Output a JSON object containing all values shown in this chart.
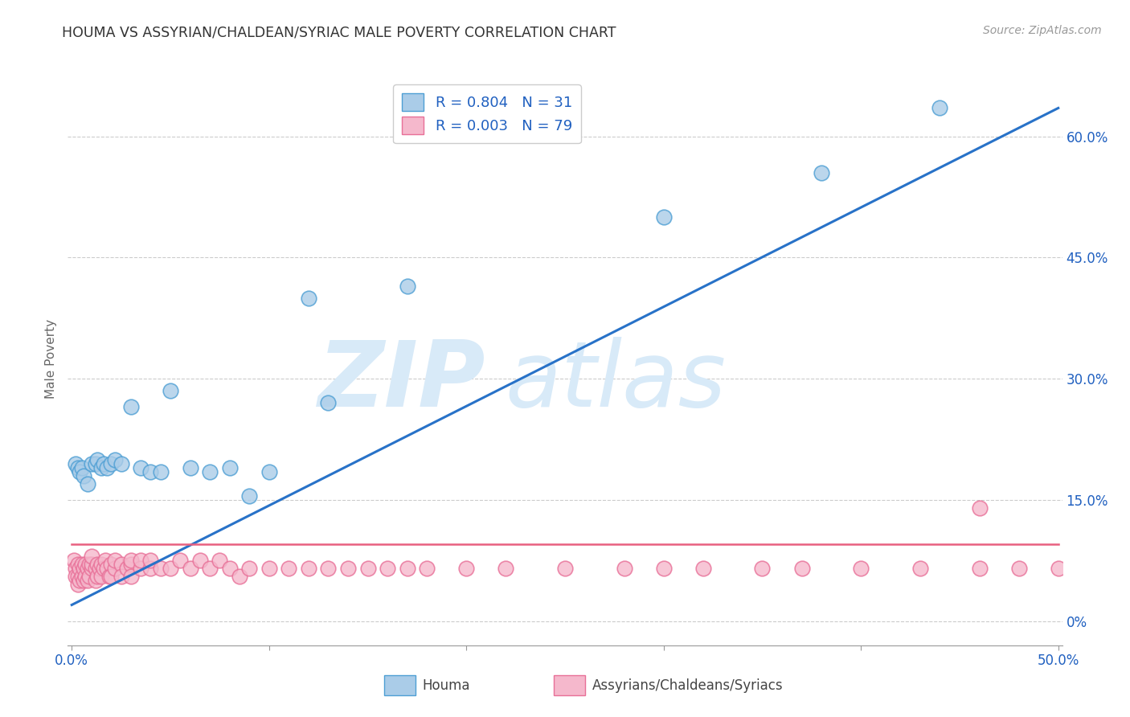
{
  "title": "HOUMA VS ASSYRIAN/CHALDEAN/SYRIAC MALE POVERTY CORRELATION CHART",
  "source": "Source: ZipAtlas.com",
  "ylabel": "Male Poverty",
  "right_yticks": [
    "0%",
    "15.0%",
    "30.0%",
    "45.0%",
    "60.0%"
  ],
  "right_ytick_vals": [
    0.0,
    0.15,
    0.3,
    0.45,
    0.6
  ],
  "xlim": [
    -0.002,
    0.502
  ],
  "ylim": [
    -0.03,
    0.68
  ],
  "plot_area_ylim": [
    0.0,
    0.65
  ],
  "houma_R": 0.804,
  "houma_N": 31,
  "assyrian_R": 0.003,
  "assyrian_N": 79,
  "houma_color": "#aacce8",
  "houma_edge_color": "#4e9fd4",
  "assyrian_color": "#f5b8cc",
  "assyrian_edge_color": "#e87098",
  "trend_houma_color": "#2872c8",
  "trend_assyrian_color": "#e86080",
  "legend_text_color": "#2060c0",
  "watermark_color": "#d8eaf8",
  "background_color": "#ffffff",
  "houma_x": [
    0.002,
    0.003,
    0.004,
    0.005,
    0.006,
    0.008,
    0.01,
    0.012,
    0.013,
    0.015,
    0.016,
    0.018,
    0.02,
    0.022,
    0.025,
    0.03,
    0.035,
    0.04,
    0.045,
    0.05,
    0.06,
    0.07,
    0.08,
    0.09,
    0.1,
    0.12,
    0.13,
    0.17,
    0.3,
    0.38,
    0.44
  ],
  "houma_y": [
    0.195,
    0.19,
    0.185,
    0.19,
    0.18,
    0.17,
    0.195,
    0.195,
    0.2,
    0.19,
    0.195,
    0.19,
    0.195,
    0.2,
    0.195,
    0.265,
    0.19,
    0.185,
    0.185,
    0.285,
    0.19,
    0.185,
    0.19,
    0.155,
    0.185,
    0.4,
    0.27,
    0.415,
    0.5,
    0.555,
    0.635
  ],
  "assyrian_x": [
    0.001,
    0.002,
    0.002,
    0.003,
    0.003,
    0.003,
    0.004,
    0.004,
    0.005,
    0.005,
    0.006,
    0.006,
    0.007,
    0.007,
    0.008,
    0.008,
    0.009,
    0.009,
    0.01,
    0.01,
    0.01,
    0.012,
    0.012,
    0.013,
    0.013,
    0.014,
    0.015,
    0.015,
    0.016,
    0.017,
    0.018,
    0.019,
    0.02,
    0.02,
    0.022,
    0.022,
    0.025,
    0.025,
    0.028,
    0.03,
    0.03,
    0.03,
    0.035,
    0.035,
    0.04,
    0.04,
    0.045,
    0.05,
    0.055,
    0.06,
    0.065,
    0.07,
    0.075,
    0.08,
    0.085,
    0.09,
    0.1,
    0.11,
    0.12,
    0.13,
    0.14,
    0.15,
    0.16,
    0.17,
    0.18,
    0.2,
    0.22,
    0.25,
    0.28,
    0.3,
    0.32,
    0.35,
    0.37,
    0.4,
    0.43,
    0.46,
    0.48,
    0.5,
    0.46
  ],
  "assyrian_y": [
    0.075,
    0.065,
    0.055,
    0.07,
    0.055,
    0.045,
    0.065,
    0.05,
    0.07,
    0.055,
    0.065,
    0.05,
    0.07,
    0.055,
    0.065,
    0.05,
    0.07,
    0.055,
    0.065,
    0.07,
    0.08,
    0.065,
    0.05,
    0.07,
    0.055,
    0.065,
    0.07,
    0.055,
    0.065,
    0.075,
    0.065,
    0.055,
    0.07,
    0.055,
    0.065,
    0.075,
    0.07,
    0.055,
    0.065,
    0.07,
    0.075,
    0.055,
    0.065,
    0.075,
    0.065,
    0.075,
    0.065,
    0.065,
    0.075,
    0.065,
    0.075,
    0.065,
    0.075,
    0.065,
    0.055,
    0.065,
    0.065,
    0.065,
    0.065,
    0.065,
    0.065,
    0.065,
    0.065,
    0.065,
    0.065,
    0.065,
    0.065,
    0.065,
    0.065,
    0.065,
    0.065,
    0.065,
    0.065,
    0.065,
    0.065,
    0.065,
    0.065,
    0.065,
    0.14
  ],
  "houma_trend_x0": 0.0,
  "houma_trend_y0": 0.02,
  "houma_trend_x1": 0.5,
  "houma_trend_y1": 0.635,
  "assyrian_trend_x0": 0.0,
  "assyrian_trend_y0": 0.095,
  "assyrian_trend_x1": 0.5,
  "assyrian_trend_y1": 0.095
}
